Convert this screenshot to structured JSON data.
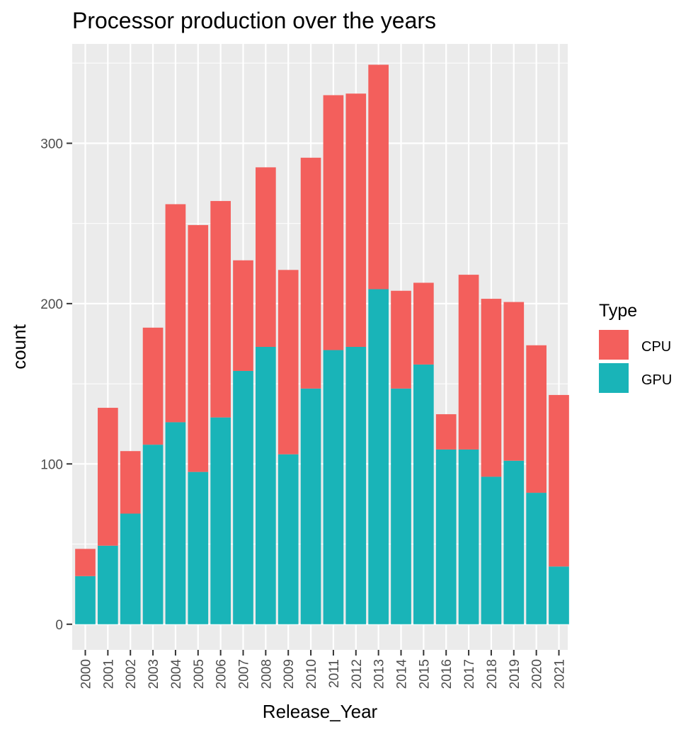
{
  "chart_data": {
    "type": "bar",
    "stacked": true,
    "title": "Processor production over the years",
    "xlabel": "Release_Year",
    "ylabel": "count",
    "categories": [
      "2000",
      "2001",
      "2002",
      "2003",
      "2004",
      "2005",
      "2006",
      "2007",
      "2008",
      "2009",
      "2010",
      "2011",
      "2012",
      "2013",
      "2014",
      "2015",
      "2016",
      "2017",
      "2018",
      "2019",
      "2020",
      "2021"
    ],
    "series": [
      {
        "name": "GPU",
        "color": "#19B4B8",
        "values": [
          30,
          49,
          69,
          112,
          126,
          95,
          129,
          158,
          173,
          106,
          147,
          171,
          173,
          209,
          147,
          162,
          109,
          109,
          92,
          102,
          82,
          36
        ]
      },
      {
        "name": "CPU",
        "color": "#F35F5C",
        "values": [
          17,
          86,
          39,
          73,
          136,
          154,
          135,
          69,
          112,
          115,
          144,
          159,
          158,
          140,
          61,
          51,
          22,
          109,
          111,
          99,
          92,
          107
        ]
      }
    ],
    "yticks": [
      0,
      100,
      200,
      300
    ],
    "ylim": [
      -16,
      362
    ],
    "grid": true,
    "legend": {
      "title": "Type",
      "position": "right",
      "entries": [
        "CPU",
        "GPU"
      ]
    }
  }
}
